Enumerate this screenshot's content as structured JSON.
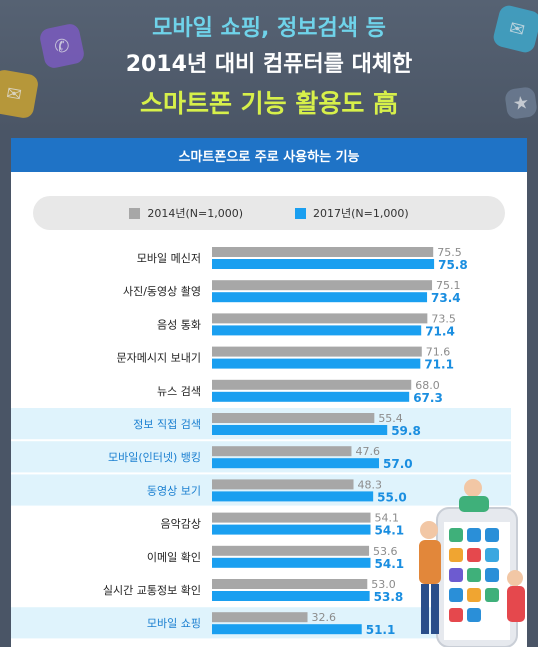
{
  "header": {
    "line1": "모바일 쇼핑, 정보검색 등",
    "line2": "2014년 대비 컴퓨터를 대체한",
    "line3": "스마트폰 기능 활용도 高"
  },
  "colors": {
    "series_2014": "#a7a7a7",
    "series_2017": "#1a9ff0",
    "highlight_row": "#dff3fc",
    "value_2014_text": "#8c8c8c",
    "value_2017_text": "#1a8ee0",
    "highlight_label": "#1a7fd0"
  },
  "chart_data": {
    "type": "bar",
    "orientation": "horizontal",
    "title": "스마트폰으로 주로 사용하는 기능",
    "legend_position": "top",
    "categories": [
      "모바일 메신저",
      "사진/동영상 촬영",
      "음성 통화",
      "문자메시지 보내기",
      "뉴스 검색",
      "정보 직접 검색",
      "모바일(인터넷) 뱅킹",
      "동영상 보기",
      "음악감상",
      "이메일 확인",
      "실시간 교통정보 확인",
      "모바일 쇼핑"
    ],
    "highlighted": [
      false,
      false,
      false,
      false,
      false,
      true,
      true,
      true,
      false,
      false,
      false,
      true
    ],
    "series": [
      {
        "name": "2014년(N=1,000)",
        "values": [
          75.5,
          75.1,
          73.5,
          71.6,
          68.0,
          55.4,
          47.6,
          48.3,
          54.1,
          53.6,
          53.0,
          32.6
        ]
      },
      {
        "name": "2017년(N=1,000)",
        "values": [
          75.8,
          73.4,
          71.4,
          71.1,
          67.3,
          59.8,
          57.0,
          55.0,
          54.1,
          54.1,
          53.8,
          51.1
        ]
      }
    ],
    "xlim": [
      0,
      100
    ],
    "grid": false
  }
}
